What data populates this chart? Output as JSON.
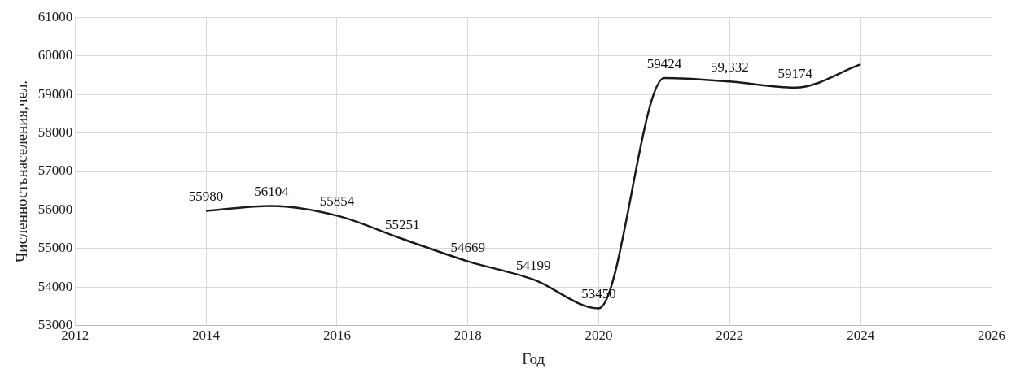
{
  "chart_data": {
    "type": "line",
    "xlabel": "Год",
    "ylabel": "Численностьнаселения,чел.",
    "x": [
      2014,
      2015,
      2016,
      2017,
      2018,
      2019,
      2020,
      2021,
      2022,
      2023,
      2024
    ],
    "series": [
      {
        "color": "#1a1a1a",
        "values": [
          55980,
          56104,
          55854,
          55251,
          54669,
          54199,
          53450,
          59424,
          59332,
          59174,
          59780
        ],
        "value_labels": [
          "55980",
          "56104",
          "55854",
          "55251",
          "54669",
          "54199",
          "53450",
          "59424",
          "59,332",
          "59174",
          null
        ]
      }
    ],
    "xlim": [
      2012,
      2026
    ],
    "xticks": [
      2012,
      2014,
      2016,
      2018,
      2020,
      2022,
      2024,
      2026
    ],
    "ylim": [
      53000,
      61000
    ],
    "yticks": [
      53000,
      54000,
      55000,
      56000,
      57000,
      58000,
      59000,
      60000,
      61000
    ],
    "grid": true,
    "marker": "none",
    "line_style": "solid",
    "legend": false
  }
}
